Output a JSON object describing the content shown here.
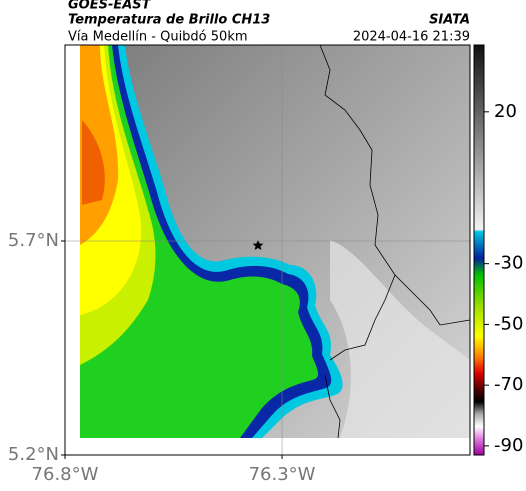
{
  "header": {
    "source": "GOES-EAST",
    "title": "Temperatura de Brillo CH13",
    "subtitle": "Vía Medellín - Quibdó 50km",
    "agency": "SIATA",
    "timestamp": "2024-04-16 21:39"
  },
  "map": {
    "xlim": [
      -76.8,
      -75.867
    ],
    "ylim": [
      5.2,
      6.158
    ],
    "xticks": [
      {
        "value": -76.8,
        "label": "76.8°W"
      },
      {
        "value": -76.3,
        "label": "76.3°W"
      }
    ],
    "yticks": [
      {
        "value": 5.7,
        "label": "5.7°N"
      },
      {
        "value": 5.2,
        "label": "5.2°N"
      }
    ]
  },
  "colorbar": {
    "lim": [
      42,
      -93
    ],
    "ticks": [
      20,
      -30,
      -50,
      -70,
      -90
    ]
  }
}
